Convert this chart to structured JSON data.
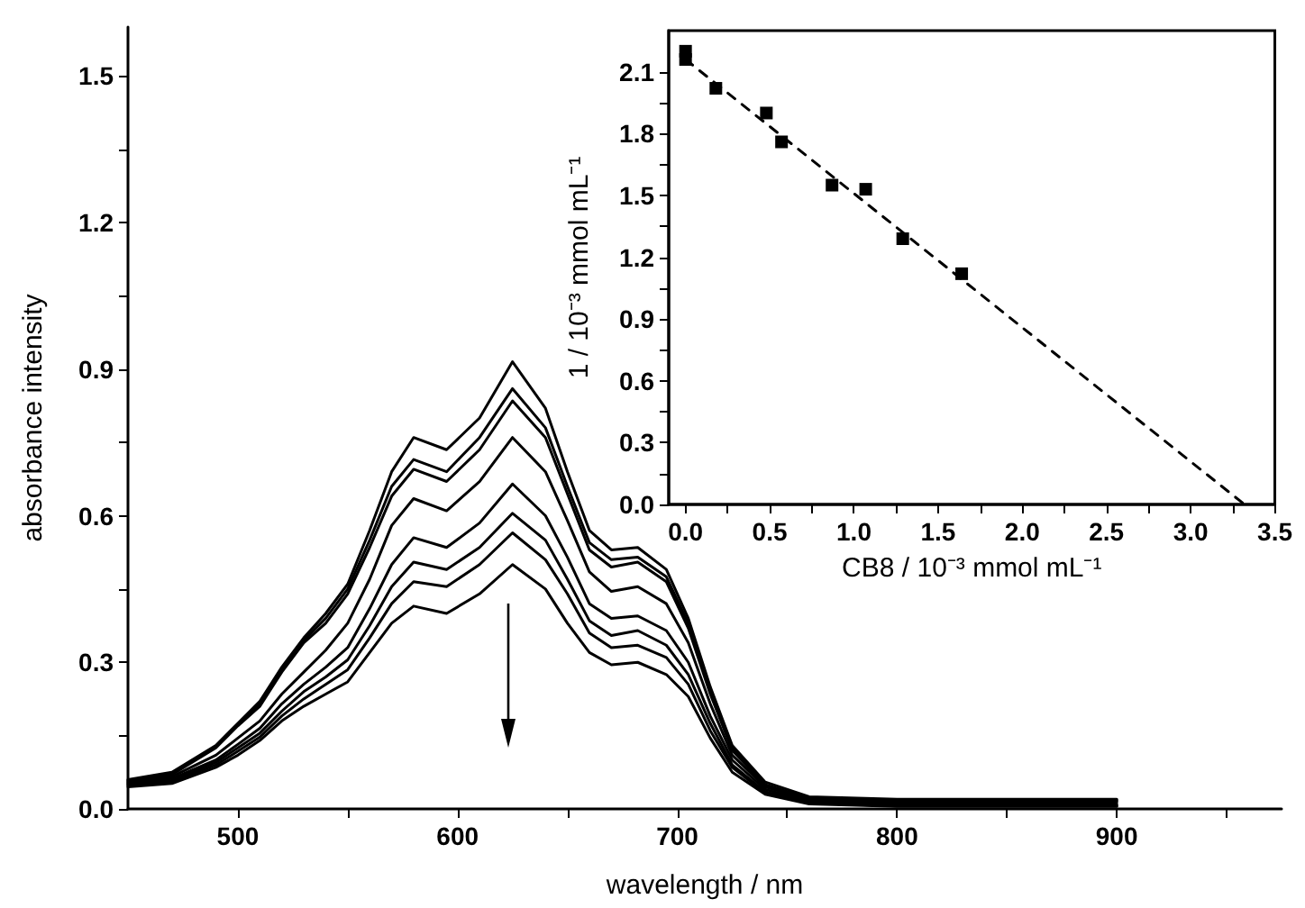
{
  "chart_data": [
    {
      "type": "line",
      "xlabel": "wavelength / nm",
      "ylabel": "absorbance intensity",
      "marker": "none",
      "line_style": "solid",
      "grid": false,
      "xlim": [
        450,
        975
      ],
      "xticks": [
        500,
        {
          "value": 550,
          "label": null
        },
        600,
        {
          "value": 650,
          "label": null
        },
        700,
        {
          "value": 750,
          "label": null
        },
        800,
        {
          "value": 850,
          "label": null
        },
        900,
        {
          "value": 950,
          "label": null
        }
      ],
      "ylim": [
        0,
        1.6
      ],
      "yticks": [
        {
          "value": 0,
          "label": "0.0"
        },
        {
          "value": 0.15,
          "label": null
        },
        0.3,
        {
          "value": 0.45,
          "label": null
        },
        0.6,
        {
          "value": 0.75,
          "label": null
        },
        0.9,
        {
          "value": 1.05,
          "label": null
        },
        1.2,
        {
          "value": 1.35,
          "label": null
        },
        1.5
      ],
      "x": [
        450,
        470,
        490,
        500,
        510,
        520,
        530,
        540,
        550,
        560,
        570,
        580,
        595,
        610,
        625,
        640,
        650,
        660,
        670,
        682,
        695,
        705,
        715,
        725,
        740,
        760,
        800,
        900
      ],
      "series": [
        {
          "color": "#000000",
          "values": [
            0.06,
            0.075,
            0.13,
            0.175,
            0.22,
            0.29,
            0.35,
            0.4,
            0.46,
            0.57,
            0.69,
            0.76,
            0.735,
            0.8,
            0.915,
            0.82,
            0.69,
            0.57,
            0.53,
            0.535,
            0.49,
            0.39,
            0.25,
            0.13,
            0.055,
            0.025,
            0.02,
            0.02
          ]
        },
        {
          "color": "#000000",
          "values": [
            0.058,
            0.072,
            0.128,
            0.172,
            0.215,
            0.285,
            0.345,
            0.39,
            0.45,
            0.55,
            0.66,
            0.715,
            0.69,
            0.76,
            0.86,
            0.78,
            0.66,
            0.545,
            0.51,
            0.515,
            0.475,
            0.38,
            0.24,
            0.125,
            0.05,
            0.022,
            0.018,
            0.018
          ]
        },
        {
          "color": "#000000",
          "values": [
            0.056,
            0.07,
            0.125,
            0.17,
            0.21,
            0.28,
            0.34,
            0.38,
            0.44,
            0.535,
            0.64,
            0.695,
            0.67,
            0.735,
            0.835,
            0.76,
            0.645,
            0.53,
            0.495,
            0.505,
            0.465,
            0.37,
            0.235,
            0.12,
            0.048,
            0.02,
            0.016,
            0.016
          ]
        },
        {
          "color": "#000000",
          "values": [
            0.054,
            0.066,
            0.11,
            0.145,
            0.18,
            0.235,
            0.28,
            0.325,
            0.38,
            0.47,
            0.58,
            0.635,
            0.61,
            0.67,
            0.76,
            0.69,
            0.59,
            0.485,
            0.445,
            0.455,
            0.42,
            0.34,
            0.215,
            0.11,
            0.045,
            0.018,
            0.014,
            0.014
          ]
        },
        {
          "color": "#000000",
          "values": [
            0.052,
            0.062,
            0.1,
            0.132,
            0.165,
            0.215,
            0.255,
            0.29,
            0.33,
            0.41,
            0.5,
            0.555,
            0.535,
            0.585,
            0.665,
            0.6,
            0.515,
            0.42,
            0.39,
            0.395,
            0.365,
            0.3,
            0.19,
            0.1,
            0.04,
            0.015,
            0.01,
            0.01
          ]
        },
        {
          "color": "#000000",
          "values": [
            0.05,
            0.058,
            0.095,
            0.125,
            0.155,
            0.2,
            0.24,
            0.27,
            0.305,
            0.375,
            0.455,
            0.505,
            0.49,
            0.535,
            0.605,
            0.55,
            0.47,
            0.385,
            0.355,
            0.365,
            0.335,
            0.275,
            0.175,
            0.09,
            0.035,
            0.013,
            0.008,
            0.008
          ]
        },
        {
          "color": "#000000",
          "values": [
            0.048,
            0.055,
            0.09,
            0.118,
            0.147,
            0.19,
            0.225,
            0.255,
            0.285,
            0.35,
            0.42,
            0.465,
            0.455,
            0.5,
            0.565,
            0.51,
            0.44,
            0.36,
            0.33,
            0.335,
            0.31,
            0.255,
            0.16,
            0.085,
            0.032,
            0.012,
            0.006,
            0.006
          ]
        },
        {
          "color": "#000000",
          "values": [
            0.045,
            0.052,
            0.085,
            0.11,
            0.14,
            0.18,
            0.21,
            0.235,
            0.26,
            0.32,
            0.38,
            0.415,
            0.4,
            0.44,
            0.5,
            0.45,
            0.38,
            0.32,
            0.295,
            0.3,
            0.275,
            0.23,
            0.145,
            0.075,
            0.03,
            0.01,
            0.005,
            0.005
          ]
        }
      ]
    },
    {
      "type": "scatter",
      "xlabel": "CB8 / 10⁻³ mmol mL⁻¹",
      "ylabel": "1 / 10⁻³ mmol mL⁻¹",
      "grid": false,
      "xlim": [
        -0.1,
        3.5
      ],
      "xticks": [
        {
          "value": 0,
          "label": "0.0"
        },
        {
          "value": 0.25,
          "label": null
        },
        0.5,
        {
          "value": 0.75,
          "label": null
        },
        {
          "value": 1,
          "label": "1.0"
        },
        {
          "value": 1.25,
          "label": null
        },
        1.5,
        {
          "value": 1.75,
          "label": null
        },
        {
          "value": 2,
          "label": "2.0"
        },
        {
          "value": 2.25,
          "label": null
        },
        2.5,
        {
          "value": 2.75,
          "label": null
        },
        {
          "value": 3,
          "label": "3.0"
        },
        {
          "value": 3.25,
          "label": null
        },
        3.5
      ],
      "ylim": [
        0,
        2.3
      ],
      "yticks": [
        {
          "value": 0,
          "label": "0.0"
        },
        {
          "value": 0.15,
          "label": null
        },
        0.3,
        {
          "value": 0.45,
          "label": null
        },
        0.6,
        {
          "value": 0.75,
          "label": null
        },
        0.9,
        {
          "value": 1.05,
          "label": null
        },
        1.2,
        {
          "value": 1.35,
          "label": null
        },
        1.5,
        {
          "value": 1.65,
          "label": null
        },
        1.8,
        {
          "value": 1.95,
          "label": null
        },
        2.1
      ],
      "series": [
        {
          "type": "scatter",
          "color": "#000000",
          "marker": "square",
          "x": [
            0,
            0,
            0.18,
            0.48,
            0.57,
            0.87,
            1.07,
            1.29,
            1.64
          ],
          "values": [
            2.2,
            2.16,
            2.02,
            1.9,
            1.76,
            1.55,
            1.53,
            1.29,
            1.12
          ]
        },
        {
          "type": "line",
          "color": "#000000",
          "marker": "none",
          "line_style": "dashed",
          "x": [
            0,
            3.32
          ],
          "values": [
            2.16,
            0
          ]
        }
      ]
    }
  ]
}
